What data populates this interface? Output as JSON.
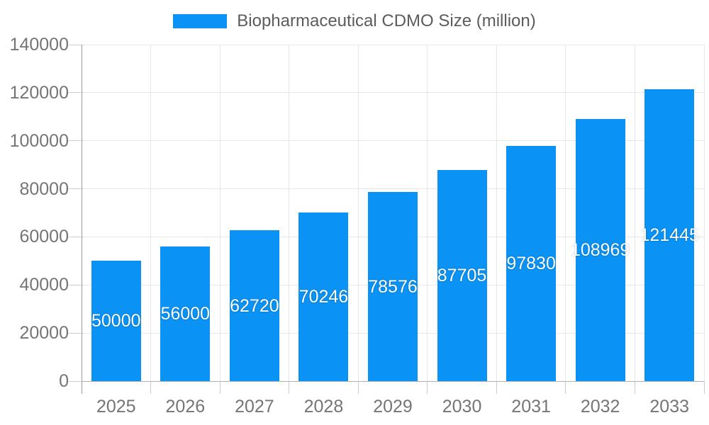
{
  "chart_data": {
    "type": "bar",
    "title": "",
    "legend_position": "top",
    "categories": [
      "2025",
      "2026",
      "2027",
      "2028",
      "2029",
      "2030",
      "2031",
      "2032",
      "2033"
    ],
    "series": [
      {
        "name": "Biopharmaceutical CDMO Size (million)",
        "values": [
          50000,
          56000,
          62720,
          70246,
          78576,
          87705,
          97830,
          108969,
          121445
        ]
      }
    ],
    "xlabel": "",
    "ylabel": "",
    "ylim": [
      0,
      140000
    ],
    "yticks": [
      0,
      20000,
      40000,
      60000,
      80000,
      100000,
      120000,
      140000
    ],
    "grid": true,
    "bar_labels_inside": true,
    "colors": {
      "bar": "#0a92f4",
      "axis_text": "#757575",
      "legend_text": "#5c5c5c",
      "gridline": "#e6e6e6",
      "axis_line": "#b0b0b0",
      "y_axis_line": "#999999",
      "tick": "#cccccc",
      "value_label": "#ffffff",
      "background": "#ffffff"
    }
  }
}
